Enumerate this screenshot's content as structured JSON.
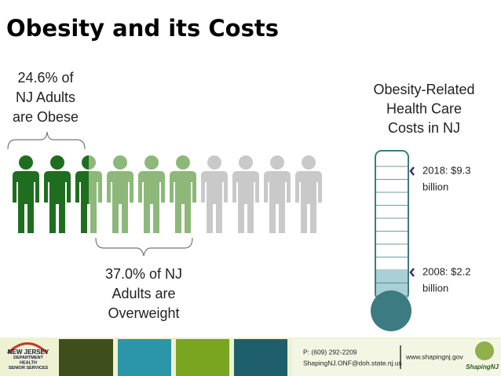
{
  "header": {
    "title": "Obesity and its Costs"
  },
  "obese_note": {
    "lines": [
      "24.6% of",
      "NJ Adults",
      "are Obese"
    ]
  },
  "overweight_note": {
    "lines": [
      "37.0% of NJ",
      "Adults are",
      "Overweight"
    ]
  },
  "costs": {
    "heading": [
      "Obesity-Related",
      "Health Care",
      "Costs in NJ"
    ],
    "markers": [
      {
        "lines": [
          "2018: $9.3",
          "billion"
        ]
      },
      {
        "lines": [
          "2008: $2.2",
          "billion"
        ]
      }
    ]
  },
  "footer": {
    "phone": "P: (609) 292-2209",
    "email": "ShapingNJ.ONF@doh.state.nj.us",
    "website": "www.shapingnj.gov",
    "left_logo": [
      "NEW JERSEY",
      "DEPARTMENT",
      "HEALTH",
      "SENIOR SERVICES"
    ],
    "right_logo": "ShapingNJ"
  }
}
